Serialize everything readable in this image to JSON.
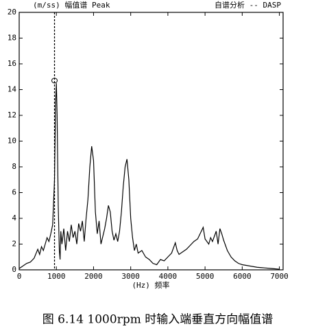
{
  "chart_data": {
    "type": "line",
    "title_left": "(m/ss) 幅值谱 Peak",
    "title_right": "自谱分析 -- DASP",
    "x_label": "(Hz) 频率",
    "caption": "图 6.14 1000rpm 时输入端垂直方向幅值谱",
    "x": [
      0,
      100,
      200,
      300,
      400,
      500,
      550,
      600,
      650,
      700,
      750,
      800,
      850,
      900,
      950,
      980,
      1000,
      1020,
      1050,
      1080,
      1100,
      1120,
      1150,
      1200,
      1250,
      1300,
      1350,
      1400,
      1450,
      1500,
      1550,
      1600,
      1650,
      1700,
      1750,
      1800,
      1850,
      1900,
      1950,
      2000,
      2050,
      2100,
      2150,
      2200,
      2250,
      2300,
      2350,
      2400,
      2450,
      2500,
      2550,
      2600,
      2650,
      2700,
      2750,
      2800,
      2850,
      2900,
      2950,
      3000,
      3050,
      3100,
      3150,
      3200,
      3300,
      3400,
      3500,
      3600,
      3700,
      3800,
      3900,
      4000,
      4100,
      4200,
      4250,
      4300,
      4400,
      4500,
      4600,
      4700,
      4800,
      4900,
      4950,
      5000,
      5100,
      5150,
      5200,
      5300,
      5350,
      5400,
      5450,
      5500,
      5600,
      5700,
      5800,
      5900,
      6000,
      6200,
      6400,
      6600,
      6800,
      7000
    ],
    "series": [
      {
        "name": "Peak",
        "color": "#000000",
        "values": [
          0.1,
          0.3,
          0.5,
          0.6,
          0.9,
          1.6,
          1.2,
          1.8,
          1.5,
          2.0,
          2.5,
          2.2,
          2.8,
          3.5,
          7.0,
          13.0,
          14.5,
          12.0,
          5.0,
          1.5,
          0.8,
          3.0,
          2.0,
          3.2,
          1.5,
          3.0,
          2.2,
          3.5,
          2.5,
          3.0,
          2.0,
          3.6,
          3.0,
          3.8,
          2.2,
          4.0,
          5.5,
          8.0,
          9.6,
          8.5,
          4.5,
          2.8,
          3.8,
          2.0,
          2.6,
          3.2,
          4.0,
          5.0,
          4.5,
          3.0,
          2.3,
          2.8,
          2.2,
          3.0,
          4.5,
          6.5,
          8.0,
          8.6,
          7.0,
          4.0,
          2.5,
          1.5,
          2.0,
          1.3,
          1.5,
          1.0,
          0.8,
          0.5,
          0.4,
          0.8,
          0.7,
          1.0,
          1.3,
          2.1,
          1.5,
          1.2,
          1.4,
          1.6,
          1.9,
          2.2,
          2.4,
          3.0,
          3.3,
          2.4,
          2.0,
          2.5,
          2.2,
          3.0,
          2.0,
          3.2,
          2.8,
          2.3,
          1.5,
          1.0,
          0.7,
          0.5,
          0.4,
          0.3,
          0.2,
          0.15,
          0.1,
          0.05
        ]
      }
    ],
    "cursor": {
      "x": 950,
      "y": 14.7
    },
    "xlim": [
      0,
      7100
    ],
    "ylim": [
      0,
      20
    ],
    "xticks": [
      0,
      1000,
      2000,
      3000,
      4000,
      5000,
      6000,
      7000
    ],
    "yticks": [
      0,
      2,
      4,
      6,
      8,
      10,
      12,
      14,
      16,
      18,
      20
    ],
    "grid": false
  }
}
